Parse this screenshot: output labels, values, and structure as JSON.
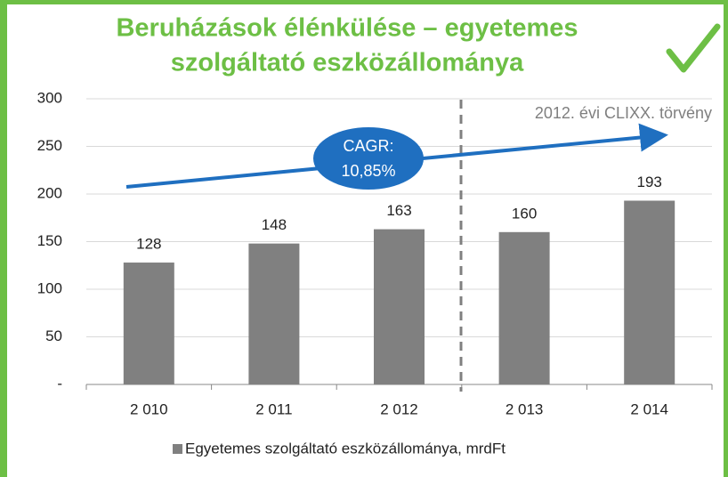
{
  "chart_data": {
    "type": "bar",
    "title": [
      "Beruházások élénkülése – egyetemes",
      "szolgáltató eszközállománya"
    ],
    "categories": [
      "2 010",
      "2 011",
      "2 012",
      "2 013",
      "2 014"
    ],
    "series": [
      {
        "name": "Egyetemes szolgáltató eszközállománya, mrdFt",
        "color": "#808080",
        "values": [
          128,
          148,
          163,
          160,
          193
        ]
      }
    ],
    "ylim": [
      0,
      300
    ],
    "yticks": [
      {
        "value": 0,
        "label": "-"
      },
      50,
      100,
      150,
      200,
      250,
      300
    ],
    "grid": true,
    "annotations": [
      "2012. évi CLIXX. törvény"
    ],
    "cagr_label": [
      "CAGR:",
      "10,85%"
    ]
  }
}
